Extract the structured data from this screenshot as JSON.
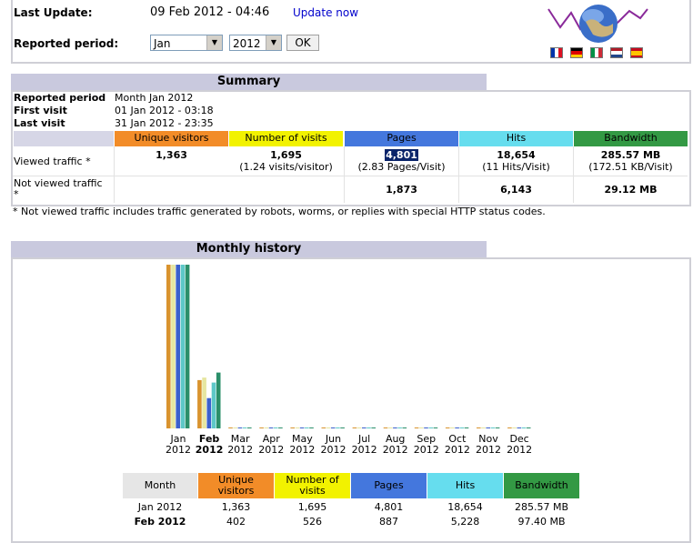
{
  "top": {
    "last_update_label": "Last Update:",
    "last_update_value": "09 Feb 2012 - 04:46",
    "update_now": "Update now",
    "period_label": "Reported period:",
    "month_value": "Jan",
    "year_value": "2012",
    "ok_label": "OK"
  },
  "colors": {
    "unique": "#f28c28",
    "visits": "#f2f200",
    "pages": "#4477dd",
    "hits": "#66ddee",
    "bandwidth": "#339944",
    "header_bg": "#c9c9de"
  },
  "summary": {
    "title": "Summary",
    "reported_period_label": "Reported period",
    "reported_period_value": "Month Jan 2012",
    "first_visit_label": "First visit",
    "first_visit_value": "01 Jan 2012 - 03:18",
    "last_visit_label": "Last visit",
    "last_visit_value": "31 Jan 2012 - 23:35",
    "headers": [
      "Unique visitors",
      "Number of visits",
      "Pages",
      "Hits",
      "Bandwidth"
    ],
    "viewed_label": "Viewed traffic *",
    "viewed": {
      "unique": "1,363",
      "visits": "1,695",
      "visits_sub": "(1.24 visits/visitor)",
      "pages": "4,801",
      "pages_sub": "(2.83 Pages/Visit)",
      "hits": "18,654",
      "hits_sub": "(11 Hits/Visit)",
      "bandwidth": "285.57 MB",
      "bandwidth_sub": "(172.51 KB/Visit)"
    },
    "not_viewed_label": "Not viewed traffic *",
    "not_viewed": {
      "pages": "1,873",
      "hits": "6,143",
      "bandwidth": "29.12 MB"
    },
    "footnote": "* Not viewed traffic includes traffic generated by robots, worms, or replies with special HTTP status codes."
  },
  "history": {
    "title": "Monthly history",
    "months": [
      {
        "m": "Jan",
        "y": "2012",
        "bold": false
      },
      {
        "m": "Feb",
        "y": "2012",
        "bold": true
      },
      {
        "m": "Mar",
        "y": "2012",
        "bold": false
      },
      {
        "m": "Apr",
        "y": "2012",
        "bold": false
      },
      {
        "m": "May",
        "y": "2012",
        "bold": false
      },
      {
        "m": "Jun",
        "y": "2012",
        "bold": false
      },
      {
        "m": "Jul",
        "y": "2012",
        "bold": false
      },
      {
        "m": "Aug",
        "y": "2012",
        "bold": false
      },
      {
        "m": "Sep",
        "y": "2012",
        "bold": false
      },
      {
        "m": "Oct",
        "y": "2012",
        "bold": false
      },
      {
        "m": "Nov",
        "y": "2012",
        "bold": false
      },
      {
        "m": "Dec",
        "y": "2012",
        "bold": false
      }
    ],
    "table_headers": [
      "Month",
      "Unique visitors",
      "Number of visits",
      "Pages",
      "Hits",
      "Bandwidth"
    ],
    "rows": [
      {
        "month": "Jan 2012",
        "unique": "1,363",
        "visits": "1,695",
        "pages": "4,801",
        "hits": "18,654",
        "bandwidth": "285.57 MB",
        "bold": false
      },
      {
        "month": "Feb 2012",
        "unique": "402",
        "visits": "526",
        "pages": "887",
        "hits": "5,228",
        "bandwidth": "97.40 MB",
        "bold": true
      }
    ]
  },
  "chart_data": {
    "type": "bar",
    "categories": [
      "Jan 2012",
      "Feb 2012",
      "Mar 2012",
      "Apr 2012",
      "May 2012",
      "Jun 2012",
      "Jul 2012",
      "Aug 2012",
      "Sep 2012",
      "Oct 2012",
      "Nov 2012",
      "Dec 2012"
    ],
    "series": [
      {
        "name": "Unique visitors",
        "color": "#d9932e",
        "values": [
          1363,
          402,
          0,
          0,
          0,
          0,
          0,
          0,
          0,
          0,
          0,
          0
        ]
      },
      {
        "name": "Number of visits",
        "color": "#e6e6a0",
        "values": [
          1695,
          526,
          0,
          0,
          0,
          0,
          0,
          0,
          0,
          0,
          0,
          0
        ]
      },
      {
        "name": "Pages",
        "color": "#3a5fcd",
        "values": [
          4801,
          887,
          0,
          0,
          0,
          0,
          0,
          0,
          0,
          0,
          0,
          0
        ]
      },
      {
        "name": "Hits",
        "color": "#5ec8c8",
        "values": [
          18654,
          5228,
          0,
          0,
          0,
          0,
          0,
          0,
          0,
          0,
          0,
          0
        ]
      },
      {
        "name": "Bandwidth",
        "color": "#2b8f6a",
        "values": [
          285.57,
          97.4,
          0,
          0,
          0,
          0,
          0,
          0,
          0,
          0,
          0,
          0
        ]
      }
    ],
    "legend": "none",
    "grid": false
  }
}
